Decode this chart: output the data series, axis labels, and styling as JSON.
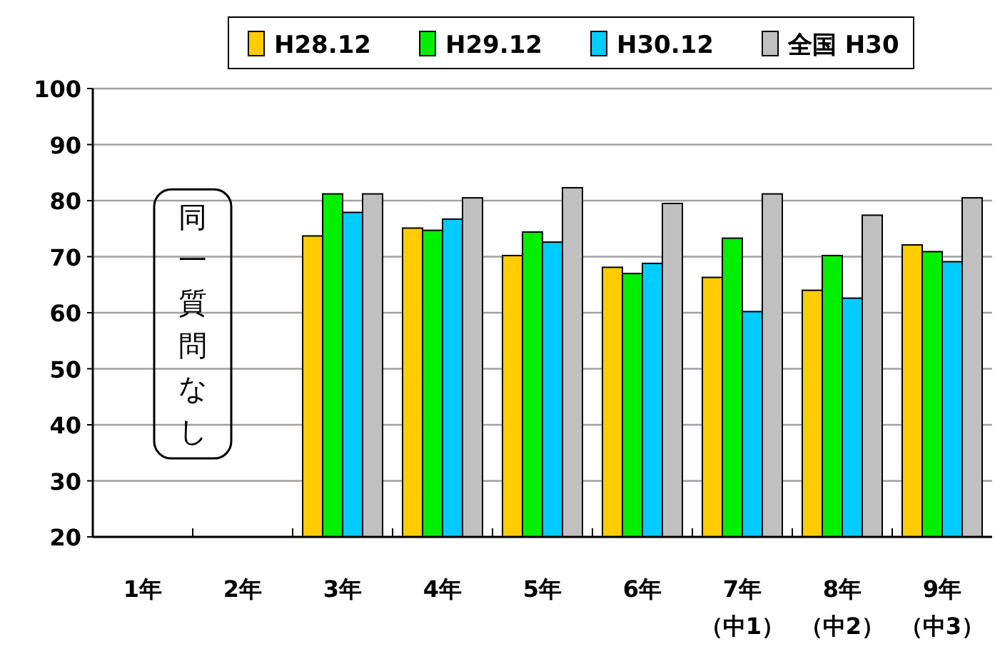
{
  "chart_data": {
    "type": "bar",
    "categories": [
      "1年",
      "2年",
      "3年",
      "4年",
      "5年",
      "6年",
      "7年（中1）",
      "8年（中2）",
      "9年（中3）"
    ],
    "series": [
      {
        "name": "H28.12",
        "color": "#ffcc00",
        "values": [
          null,
          null,
          73.7,
          75.1,
          70.2,
          68.1,
          66.3,
          64.0,
          72.1
        ]
      },
      {
        "name": "H29.12",
        "color": "#00ee00",
        "values": [
          null,
          null,
          81.2,
          74.7,
          74.4,
          67.0,
          73.3,
          70.2,
          70.9
        ]
      },
      {
        "name": "H30.12",
        "color": "#00ccff",
        "values": [
          null,
          null,
          77.9,
          76.7,
          72.6,
          68.8,
          60.2,
          62.6,
          69.1
        ]
      },
      {
        "name": "全国 H30",
        "color": "#c0c0c0",
        "values": [
          null,
          null,
          81.2,
          80.5,
          82.3,
          79.5,
          81.2,
          77.4,
          80.5
        ]
      }
    ],
    "ylim": [
      20,
      100
    ],
    "yticks": [
      20,
      30,
      40,
      50,
      60,
      70,
      80,
      90,
      100
    ],
    "grid": "y",
    "legend": "top",
    "annotations": [
      "同一質問なし"
    ]
  }
}
